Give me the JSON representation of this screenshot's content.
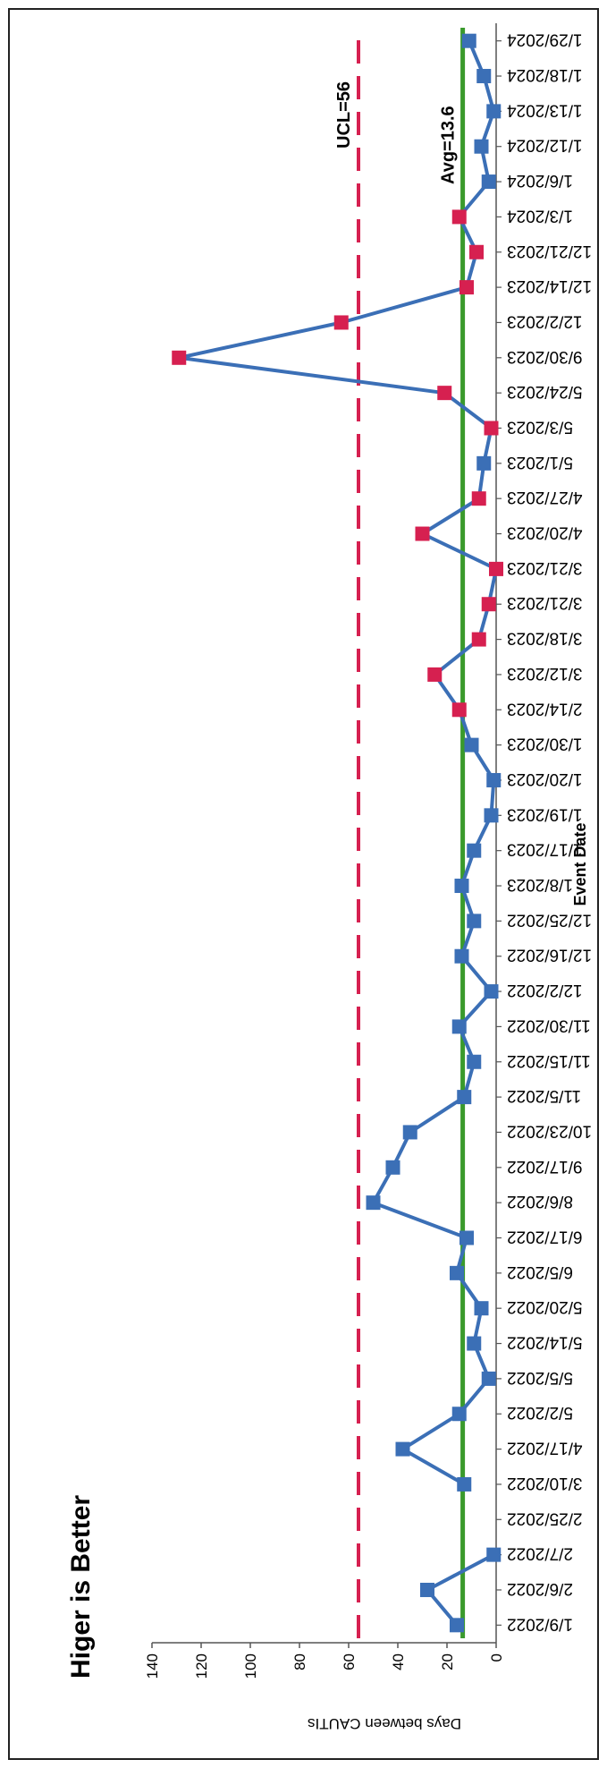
{
  "chart_data": {
    "type": "line",
    "title": "Higer is Better",
    "xlabel": "Event Date",
    "ylabel": "Days between CAUTIs",
    "ylim": [
      0,
      140
    ],
    "yticks": [
      0,
      20,
      40,
      60,
      80,
      100,
      120,
      140
    ],
    "ucl": 56,
    "ucl_label": "UCL=56",
    "avg": 13.6,
    "avg_label": "Avg=13.6",
    "colors": {
      "series": "#3b6fb6",
      "special": "#d62050",
      "ucl": "#d62050",
      "avg": "#3a9a2c"
    },
    "categories": [
      "1/9/2022",
      "2/6/2022",
      "2/7/2022",
      "2/25/2022",
      "3/10/2022",
      "4/17/2022",
      "5/2/2022",
      "5/5/2022",
      "5/14/2022",
      "5/20/2022",
      "6/5/2022",
      "6/17/2022",
      "8/6/2022",
      "9/17/2022",
      "10/23/2022",
      "11/5/2022",
      "11/15/2022",
      "11/30/2022",
      "12/2/2022",
      "12/16/2022",
      "12/25/2022",
      "1/8/2023",
      "1/17/2023",
      "1/19/2023",
      "1/20/2023",
      "1/30/2023",
      "2/14/2023",
      "3/12/2023",
      "3/18/2023",
      "3/21/2023",
      "3/21/2023",
      "4/20/2023",
      "4/27/2023",
      "5/1/2023",
      "5/3/2023",
      "5/24/2023",
      "9/30/2023",
      "12/2/2023",
      "12/14/2023",
      "12/21/2023",
      "1/3/2024",
      "1/6/2024",
      "1/12/2024",
      "1/13/2024",
      "1/18/2024",
      "1/29/2024"
    ],
    "series": [
      {
        "values": [
          16,
          28,
          1,
          null,
          13,
          38,
          15,
          3,
          9,
          6,
          16,
          12,
          50,
          42,
          35,
          13,
          9,
          15,
          2,
          14,
          9,
          14,
          9,
          2,
          1,
          10,
          15,
          25,
          7,
          3,
          0,
          30,
          7,
          5,
          2,
          21,
          129,
          63,
          12,
          8,
          15,
          3,
          6,
          1,
          5,
          11
        ]
      }
    ],
    "special_points": [
      26,
      27,
      28,
      29,
      30,
      31,
      32,
      34,
      35,
      36,
      37,
      38,
      39,
      40
    ]
  }
}
